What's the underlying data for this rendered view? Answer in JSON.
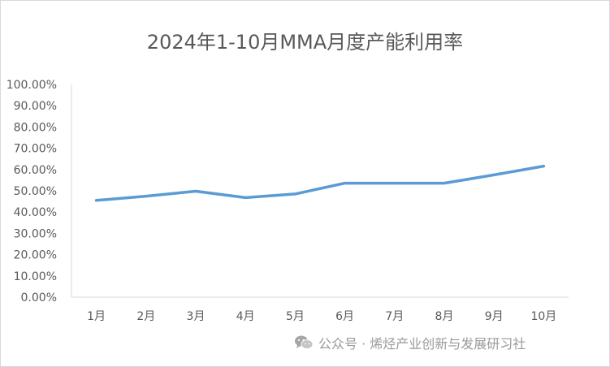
{
  "chart_data": {
    "type": "line",
    "title": "2024年1-10月MMA月度产能利用率",
    "categories": [
      "1月",
      "2月",
      "3月",
      "4月",
      "5月",
      "6月",
      "7月",
      "8月",
      "9月",
      "10月"
    ],
    "series": [
      {
        "values": [
          45.5,
          47.5,
          49.8,
          46.8,
          48.5,
          53.6,
          53.6,
          53.6,
          57.5,
          61.6
        ]
      }
    ],
    "yticks": [
      "0.00%",
      "10.00%",
      "20.00%",
      "30.00%",
      "40.00%",
      "50.00%",
      "60.00%",
      "70.00%",
      "80.00%",
      "90.00%",
      "100.00%"
    ],
    "ylim": [
      0,
      100
    ],
    "grid": false,
    "legend": "none",
    "line_color": "#5b9bd5"
  },
  "watermark": {
    "text": "公众号 · 烯烃产业创新与发展研习社",
    "icon": "wechat-icon"
  }
}
